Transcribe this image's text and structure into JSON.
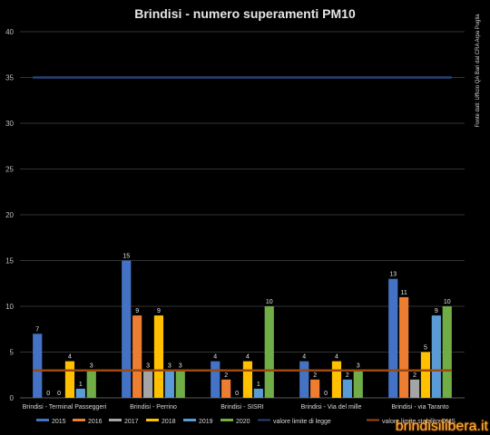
{
  "chart_data": {
    "type": "bar",
    "title": "Brindisi  - numero superamenti  PM10",
    "source_note": "Fonte dati: Ufficio QA Bari dal  CRA Arpa Puglia",
    "categories": [
      "Brindisi - Terminal Passeggeri",
      "Brindisi - Perrino",
      "Brindisi - SISRI",
      "Brindisi - Via del mille",
      "Brindisi - via Taranto"
    ],
    "series": [
      {
        "name": "2015",
        "color": "#4472c4",
        "values": [
          7,
          15,
          4,
          4,
          13
        ]
      },
      {
        "name": "2016",
        "color": "#ed7d31",
        "values": [
          0,
          9,
          2,
          2,
          11
        ]
      },
      {
        "name": "2017",
        "color": "#a5a5a5",
        "values": [
          0,
          3,
          0,
          0,
          2
        ]
      },
      {
        "name": "2018",
        "color": "#ffc000",
        "values": [
          4,
          9,
          4,
          4,
          5
        ]
      },
      {
        "name": "2019",
        "color": "#5b9bd5",
        "values": [
          1,
          3,
          1,
          2,
          9
        ]
      },
      {
        "name": "2020",
        "color": "#70ad47",
        "values": [
          3,
          3,
          10,
          3,
          10
        ]
      }
    ],
    "reference_lines": [
      {
        "name": "valore limite di legge",
        "value": 35,
        "color": "#264478"
      },
      {
        "name": "valore limite stabilito OMS",
        "value": 3,
        "color": "#9e480e"
      }
    ],
    "y_ticks": [
      0,
      5,
      10,
      15,
      20,
      25,
      30,
      35,
      40
    ],
    "ylim": [
      0,
      40
    ],
    "grid": true,
    "legend_position": "bottom"
  },
  "watermark": "brindisilibera.it"
}
